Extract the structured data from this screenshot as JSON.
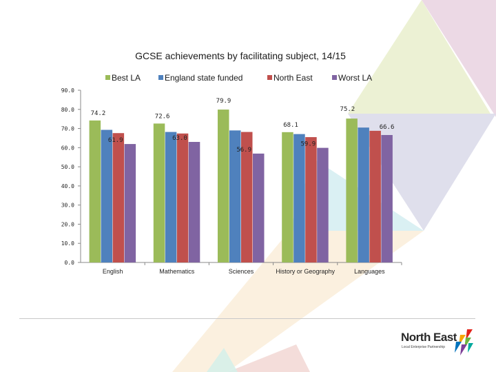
{
  "chart_data": {
    "type": "bar",
    "title": "GCSE achievements by facilitating subject, 14/15",
    "categories": [
      "English",
      "Mathematics",
      "Sciences",
      "History or Geography",
      "Languages"
    ],
    "series": [
      {
        "name": "Best LA",
        "color": "#9bbb59",
        "values": [
          74.2,
          72.6,
          79.9,
          68.1,
          75.2
        ]
      },
      {
        "name": "England state funded",
        "color": "#4f81bd",
        "values": [
          69.3,
          68.2,
          69.0,
          67.1,
          70.5
        ]
      },
      {
        "name": "North East",
        "color": "#c0504d",
        "values": [
          67.6,
          67.4,
          68.2,
          65.5,
          68.8
        ]
      },
      {
        "name": "Worst LA",
        "color": "#8064a2",
        "values": [
          61.9,
          63.0,
          56.9,
          59.9,
          66.6
        ]
      }
    ],
    "data_labels": [
      {
        "series": 0,
        "category": 0,
        "text": "74.2"
      },
      {
        "series": 3,
        "category": 0,
        "text": "61.9"
      },
      {
        "series": 0,
        "category": 1,
        "text": "72.6"
      },
      {
        "series": 3,
        "category": 1,
        "text": "63.0"
      },
      {
        "series": 0,
        "category": 2,
        "text": "79.9"
      },
      {
        "series": 3,
        "category": 2,
        "text": "56.9"
      },
      {
        "series": 0,
        "category": 3,
        "text": "68.1"
      },
      {
        "series": 3,
        "category": 3,
        "text": "59.9"
      },
      {
        "series": 0,
        "category": 4,
        "text": "75.2"
      },
      {
        "series": 3,
        "category": 4,
        "text": "66.6"
      }
    ],
    "yticks": [
      "0.0",
      "10.0",
      "20.0",
      "30.0",
      "40.0",
      "50.0",
      "60.0",
      "70.0",
      "80.0",
      "90.0"
    ],
    "ylim": [
      0,
      90
    ],
    "xlabel": "",
    "ylabel": "",
    "legend_position": "top"
  },
  "logo": {
    "name": "North East",
    "tagline": "Local Enterprise Partnership"
  }
}
